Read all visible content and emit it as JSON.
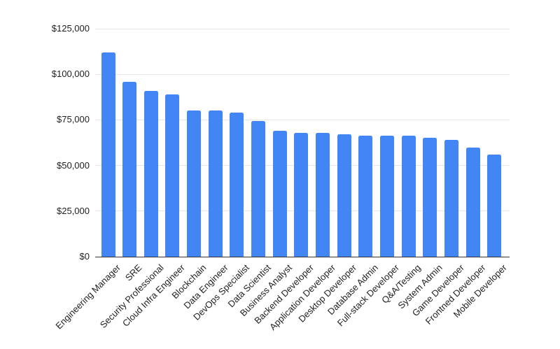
{
  "chart_data": {
    "type": "bar",
    "title": "",
    "xlabel": "",
    "ylabel": "",
    "categories": [
      "Engineering Manager",
      "SRE",
      "Security Professional",
      "Cloud Infra Engineer",
      "Blockchain",
      "Data Engineer",
      "DevOps Specialist",
      "Data Scientist",
      "Business Analyst",
      "Backend Developer",
      "Application Developer",
      "Desktop Developer",
      "Database Admin",
      "Full-stack Developer",
      "Q&A/Testing",
      "System Admin",
      "Game Developer",
      "Frontned Developer",
      "Mobile Developer"
    ],
    "values": [
      112000,
      96000,
      91000,
      89000,
      80000,
      80000,
      79000,
      74500,
      69000,
      68000,
      68000,
      67000,
      66500,
      66500,
      66500,
      65000,
      64000,
      60000,
      56000
    ],
    "y_ticks": [
      {
        "value": 0,
        "label": "$0"
      },
      {
        "value": 25000,
        "label": "$25,000"
      },
      {
        "value": 50000,
        "label": "$50,000"
      },
      {
        "value": 75000,
        "label": "$75,000"
      },
      {
        "value": 100000,
        "label": "$100,000"
      },
      {
        "value": 125000,
        "label": "$125,000"
      }
    ],
    "ylim": [
      0,
      125000
    ],
    "grid": true,
    "legend": "none",
    "colors": {
      "bar": "#4285f4",
      "gridline": "#e6e6e6",
      "axis_line": "#333333",
      "text": "#1f1f1f",
      "background": "#ffffff"
    }
  }
}
